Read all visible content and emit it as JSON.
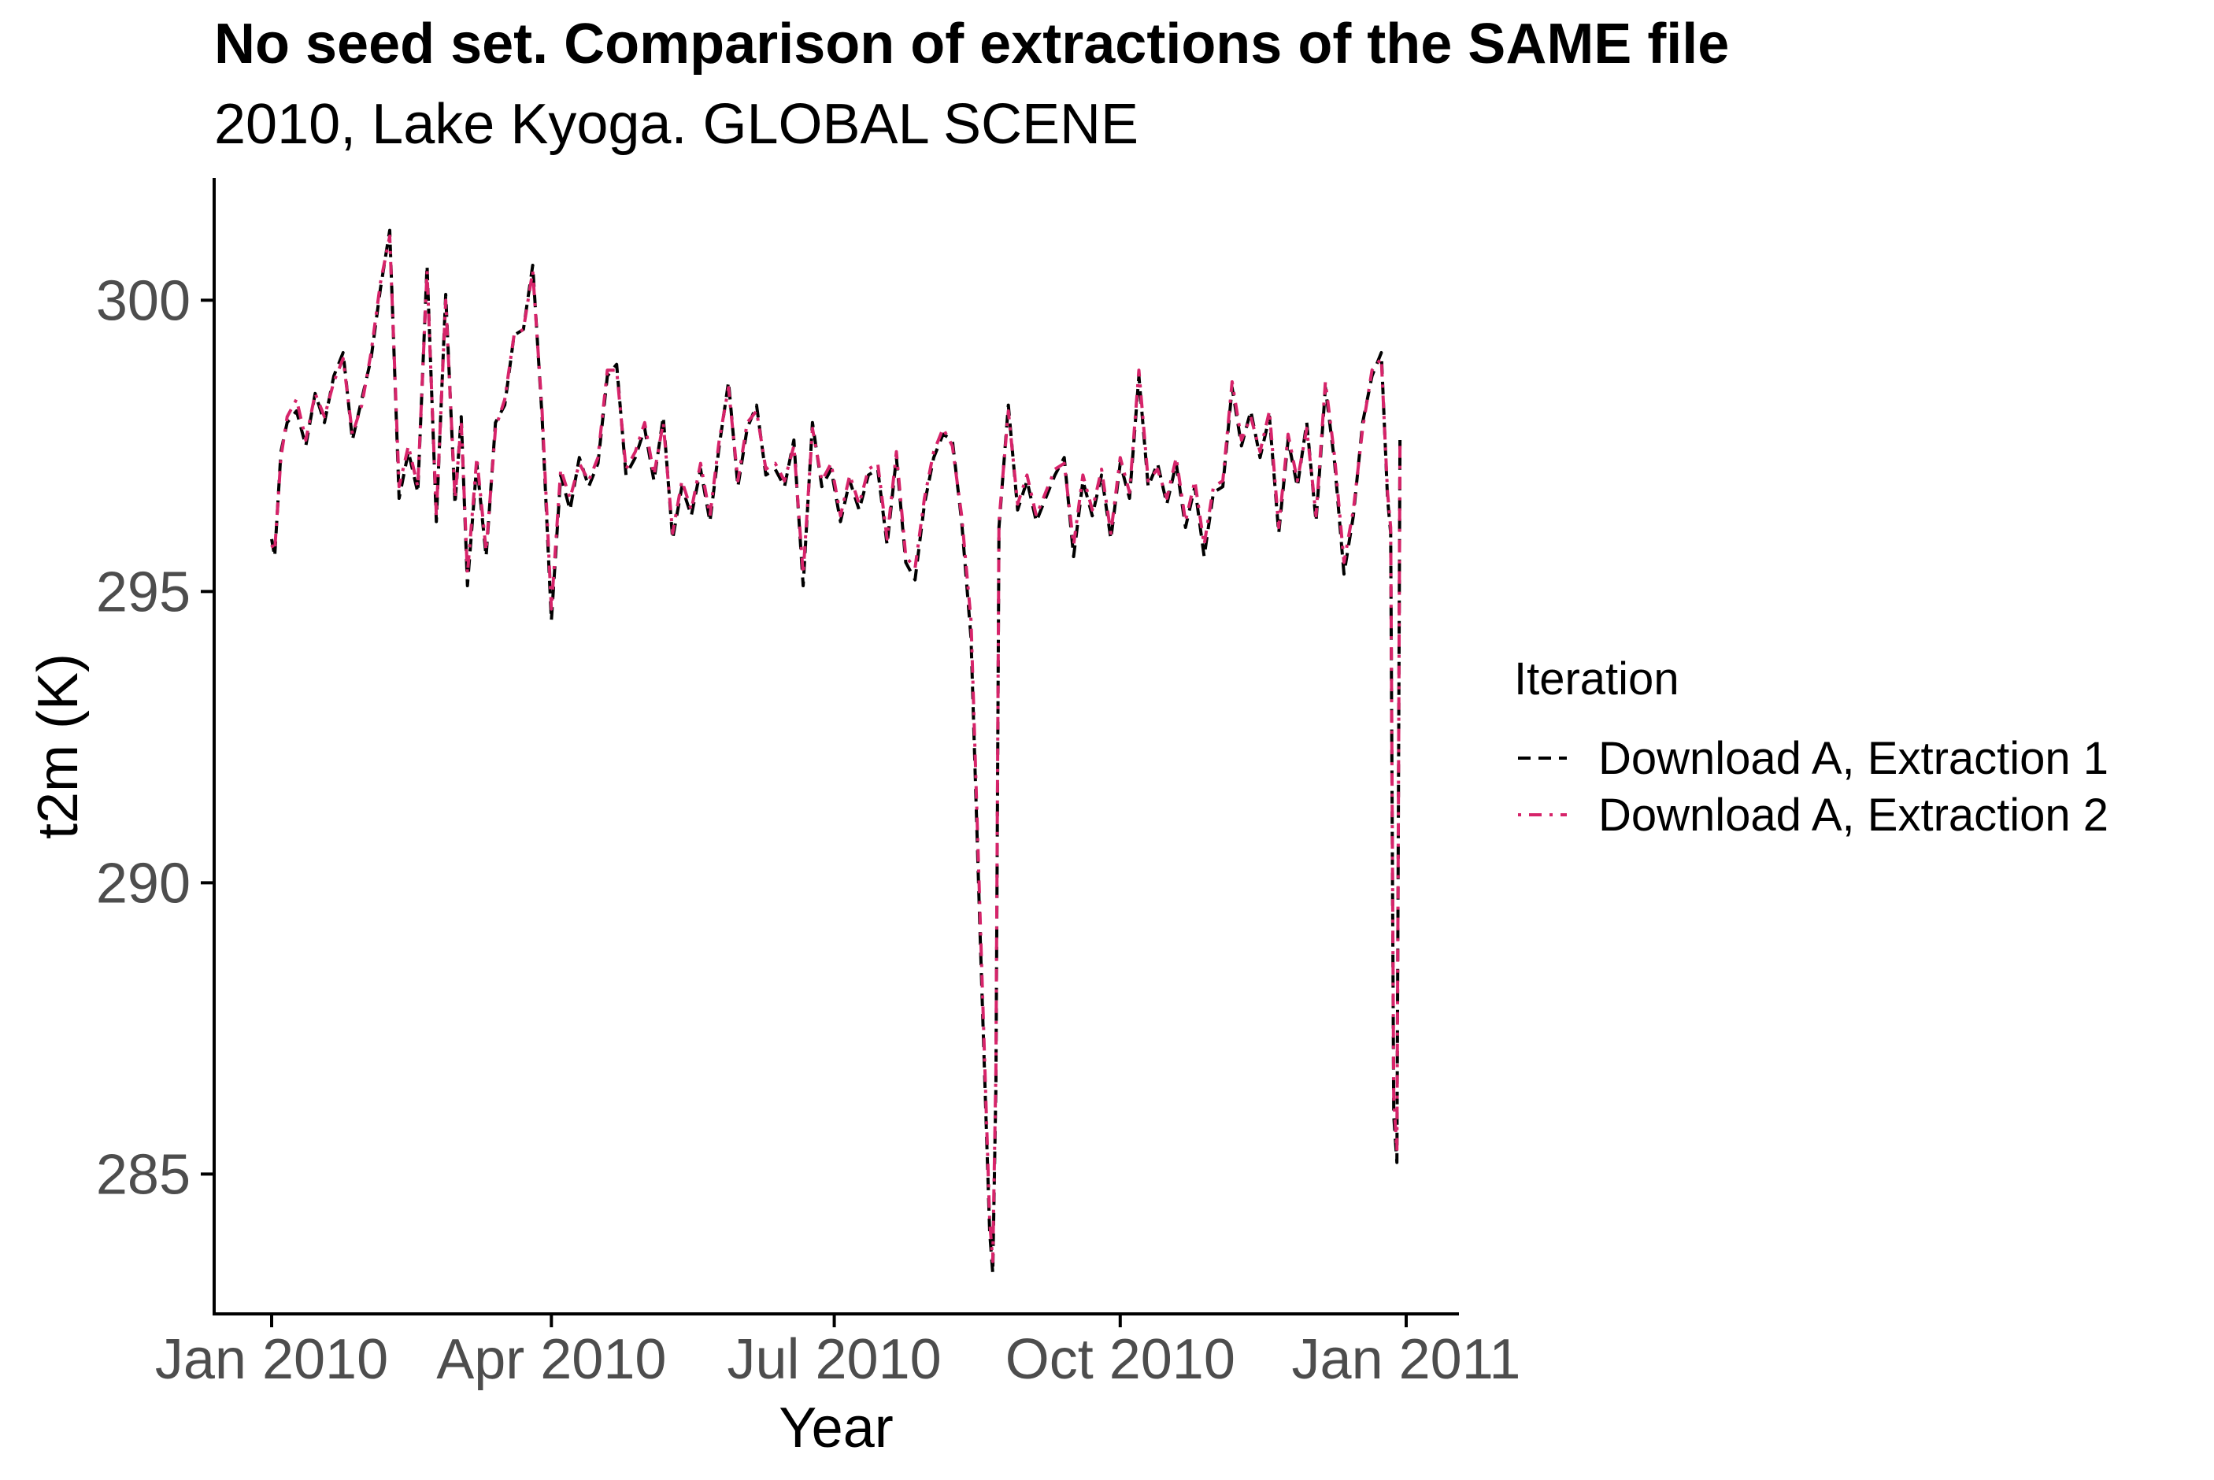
{
  "chart_data": {
    "type": "line",
    "title": "No seed set. Comparison of extractions of the SAME file",
    "subtitle": "2010, Lake Kyoga. GLOBAL SCENE",
    "xlabel": "Year",
    "ylabel": "t2m (K)",
    "x_range": [
      "2010-01-01",
      "2011-01-01"
    ],
    "ylim": [
      282.6,
      302.1
    ],
    "x_ticks": [
      {
        "date": "2010-01-01",
        "label": "Jan 2010"
      },
      {
        "date": "2010-04-01",
        "label": "Apr 2010"
      },
      {
        "date": "2010-07-01",
        "label": "Jul 2010"
      },
      {
        "date": "2010-10-01",
        "label": "Oct 2010"
      },
      {
        "date": "2011-01-01",
        "label": "Jan 2011"
      }
    ],
    "y_ticks": [
      285,
      290,
      295,
      300
    ],
    "grid": false,
    "legend": {
      "title": "Iteration",
      "position": "right"
    },
    "series": [
      {
        "name": "Download A, Extraction 1",
        "color": "#000000",
        "dash": "dashed",
        "x": [
          "2010-01-01",
          "2010-01-02",
          "2010-01-04",
          "2010-01-06",
          "2010-01-09",
          "2010-01-12",
          "2010-01-15",
          "2010-01-18",
          "2010-01-21",
          "2010-01-24",
          "2010-01-27",
          "2010-01-30",
          "2010-02-02",
          "2010-02-05",
          "2010-02-08",
          "2010-02-11",
          "2010-02-14",
          "2010-02-17",
          "2010-02-20",
          "2010-02-23",
          "2010-02-26",
          "2010-03-01",
          "2010-03-03",
          "2010-03-05",
          "2010-03-08",
          "2010-03-11",
          "2010-03-14",
          "2010-03-17",
          "2010-03-20",
          "2010-03-23",
          "2010-03-26",
          "2010-03-29",
          "2010-04-01",
          "2010-04-04",
          "2010-04-07",
          "2010-04-10",
          "2010-04-13",
          "2010-04-16",
          "2010-04-19",
          "2010-04-22",
          "2010-04-25",
          "2010-04-28",
          "2010-05-01",
          "2010-05-04",
          "2010-05-07",
          "2010-05-10",
          "2010-05-13",
          "2010-05-16",
          "2010-05-19",
          "2010-05-22",
          "2010-05-25",
          "2010-05-28",
          "2010-05-31",
          "2010-06-03",
          "2010-06-06",
          "2010-06-09",
          "2010-06-12",
          "2010-06-15",
          "2010-06-18",
          "2010-06-21",
          "2010-06-24",
          "2010-06-27",
          "2010-06-30",
          "2010-07-03",
          "2010-07-06",
          "2010-07-09",
          "2010-07-12",
          "2010-07-15",
          "2010-07-18",
          "2010-07-21",
          "2010-07-24",
          "2010-07-27",
          "2010-07-30",
          "2010-08-02",
          "2010-08-05",
          "2010-08-08",
          "2010-08-11",
          "2010-08-14",
          "2010-08-17",
          "2010-08-20",
          "2010-08-21",
          "2010-08-22",
          "2010-08-23",
          "2010-08-26",
          "2010-08-29",
          "2010-09-01",
          "2010-09-04",
          "2010-09-07",
          "2010-09-10",
          "2010-09-13",
          "2010-09-16",
          "2010-09-19",
          "2010-09-22",
          "2010-09-25",
          "2010-09-28",
          "2010-10-01",
          "2010-10-04",
          "2010-10-07",
          "2010-10-10",
          "2010-10-13",
          "2010-10-16",
          "2010-10-19",
          "2010-10-22",
          "2010-10-25",
          "2010-10-28",
          "2010-10-31",
          "2010-11-03",
          "2010-11-06",
          "2010-11-09",
          "2010-11-12",
          "2010-11-15",
          "2010-11-18",
          "2010-11-21",
          "2010-11-24",
          "2010-11-27",
          "2010-11-30",
          "2010-12-03",
          "2010-12-06",
          "2010-12-09",
          "2010-12-12",
          "2010-12-15",
          "2010-12-18",
          "2010-12-21",
          "2010-12-24",
          "2010-12-26",
          "2010-12-27",
          "2010-12-28",
          "2010-12-29",
          "2010-12-30"
        ],
        "values": [
          295.9,
          295.6,
          297.4,
          297.9,
          298.1,
          297.5,
          298.4,
          297.9,
          298.7,
          299.1,
          297.6,
          298.3,
          299.0,
          300.2,
          301.2,
          296.6,
          297.4,
          296.7,
          300.6,
          296.2,
          300.1,
          296.5,
          298.0,
          295.1,
          297.2,
          295.6,
          297.9,
          298.2,
          299.4,
          299.5,
          300.6,
          298.0,
          294.5,
          297.0,
          296.4,
          297.3,
          296.8,
          297.2,
          298.7,
          298.9,
          297.0,
          297.3,
          297.8,
          296.9,
          298.0,
          295.9,
          296.8,
          296.3,
          297.1,
          296.2,
          297.5,
          298.6,
          296.8,
          297.8,
          298.2,
          297.0,
          297.1,
          296.8,
          297.6,
          295.1,
          297.9,
          296.8,
          297.1,
          296.2,
          296.9,
          296.4,
          297.0,
          297.1,
          295.8,
          297.3,
          295.5,
          295.2,
          296.5,
          297.3,
          297.7,
          297.6,
          296.2,
          294.2,
          289.0,
          284.0,
          283.3,
          286.5,
          296.1,
          298.2,
          296.4,
          296.9,
          296.2,
          296.6,
          297.0,
          297.3,
          295.6,
          296.9,
          296.3,
          297.0,
          295.9,
          297.2,
          296.6,
          298.7,
          296.8,
          297.2,
          296.5,
          297.2,
          296.1,
          296.8,
          295.6,
          296.7,
          296.8,
          298.5,
          297.5,
          298.1,
          297.3,
          298.0,
          296.0,
          297.6,
          296.8,
          297.9,
          296.2,
          298.5,
          297.2,
          295.3,
          296.3,
          297.9,
          298.7,
          299.1,
          296.6,
          296.0,
          286.0,
          285.2,
          297.6
        ]
      },
      {
        "name": "Download A, Extraction 2",
        "color": "#d6246a",
        "dash": "dotdash",
        "x": [
          "2010-01-01",
          "2010-01-02",
          "2010-01-04",
          "2010-01-06",
          "2010-01-09",
          "2010-01-12",
          "2010-01-15",
          "2010-01-18",
          "2010-01-21",
          "2010-01-24",
          "2010-01-27",
          "2010-01-30",
          "2010-02-02",
          "2010-02-05",
          "2010-02-08",
          "2010-02-11",
          "2010-02-14",
          "2010-02-17",
          "2010-02-20",
          "2010-02-23",
          "2010-02-26",
          "2010-03-01",
          "2010-03-03",
          "2010-03-05",
          "2010-03-08",
          "2010-03-11",
          "2010-03-14",
          "2010-03-17",
          "2010-03-20",
          "2010-03-23",
          "2010-03-26",
          "2010-03-29",
          "2010-04-01",
          "2010-04-04",
          "2010-04-07",
          "2010-04-10",
          "2010-04-13",
          "2010-04-16",
          "2010-04-19",
          "2010-04-22",
          "2010-04-25",
          "2010-04-28",
          "2010-05-01",
          "2010-05-04",
          "2010-05-07",
          "2010-05-10",
          "2010-05-13",
          "2010-05-16",
          "2010-05-19",
          "2010-05-22",
          "2010-05-25",
          "2010-05-28",
          "2010-05-31",
          "2010-06-03",
          "2010-06-06",
          "2010-06-09",
          "2010-06-12",
          "2010-06-15",
          "2010-06-18",
          "2010-06-21",
          "2010-06-24",
          "2010-06-27",
          "2010-06-30",
          "2010-07-03",
          "2010-07-06",
          "2010-07-09",
          "2010-07-12",
          "2010-07-15",
          "2010-07-18",
          "2010-07-21",
          "2010-07-24",
          "2010-07-27",
          "2010-07-30",
          "2010-08-02",
          "2010-08-05",
          "2010-08-08",
          "2010-08-11",
          "2010-08-14",
          "2010-08-17",
          "2010-08-20",
          "2010-08-21",
          "2010-08-22",
          "2010-08-23",
          "2010-08-26",
          "2010-08-29",
          "2010-09-01",
          "2010-09-04",
          "2010-09-07",
          "2010-09-10",
          "2010-09-13",
          "2010-09-16",
          "2010-09-19",
          "2010-09-22",
          "2010-09-25",
          "2010-09-28",
          "2010-10-01",
          "2010-10-04",
          "2010-10-07",
          "2010-10-10",
          "2010-10-13",
          "2010-10-16",
          "2010-10-19",
          "2010-10-22",
          "2010-10-25",
          "2010-10-28",
          "2010-10-31",
          "2010-11-03",
          "2010-11-06",
          "2010-11-09",
          "2010-11-12",
          "2010-11-15",
          "2010-11-18",
          "2010-11-21",
          "2010-11-24",
          "2010-11-27",
          "2010-11-30",
          "2010-12-03",
          "2010-12-06",
          "2010-12-09",
          "2010-12-12",
          "2010-12-15",
          "2010-12-18",
          "2010-12-21",
          "2010-12-24",
          "2010-12-26",
          "2010-12-27",
          "2010-12-28",
          "2010-12-29",
          "2010-12-30"
        ],
        "values": [
          295.8,
          295.7,
          297.3,
          298.0,
          298.3,
          297.6,
          298.4,
          298.0,
          298.6,
          299.0,
          297.7,
          298.2,
          299.1,
          300.3,
          301.1,
          296.8,
          297.5,
          296.8,
          300.5,
          296.3,
          300.0,
          296.6,
          297.9,
          295.3,
          297.3,
          295.7,
          297.8,
          298.3,
          299.4,
          299.5,
          300.5,
          298.1,
          294.7,
          297.1,
          296.6,
          297.2,
          296.9,
          297.3,
          298.8,
          298.8,
          297.1,
          297.4,
          297.9,
          297.0,
          297.9,
          296.0,
          296.9,
          296.4,
          297.2,
          296.3,
          297.6,
          298.5,
          296.9,
          297.9,
          298.1,
          297.1,
          297.2,
          296.9,
          297.5,
          295.3,
          297.8,
          296.9,
          297.2,
          296.3,
          297.0,
          296.5,
          297.1,
          297.2,
          295.9,
          297.4,
          295.6,
          295.4,
          296.6,
          297.4,
          297.8,
          297.5,
          296.3,
          294.5,
          289.3,
          284.2,
          283.5,
          286.8,
          296.2,
          298.1,
          296.5,
          297.0,
          296.3,
          296.7,
          297.1,
          297.2,
          295.8,
          297.0,
          296.4,
          297.1,
          296.0,
          297.3,
          296.7,
          298.8,
          296.9,
          297.1,
          296.6,
          297.3,
          296.2,
          296.9,
          295.8,
          296.8,
          296.9,
          298.6,
          297.6,
          298.0,
          297.4,
          298.1,
          296.1,
          297.7,
          296.9,
          297.8,
          296.3,
          298.6,
          297.3,
          295.5,
          296.4,
          297.8,
          298.8,
          299.0,
          296.7,
          296.1,
          286.3,
          285.4,
          297.5
        ]
      }
    ]
  }
}
